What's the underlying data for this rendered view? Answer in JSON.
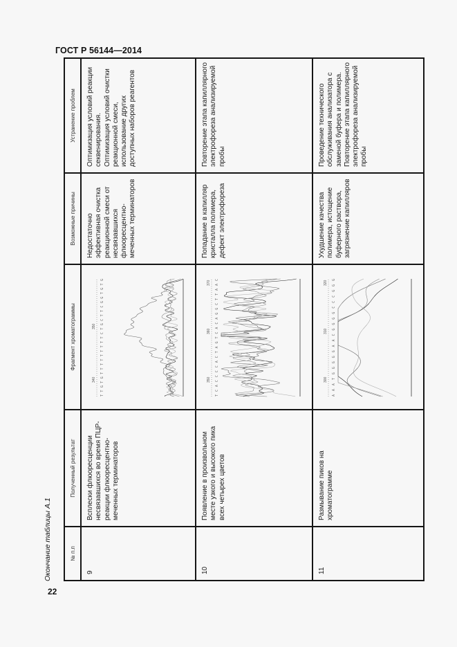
{
  "header": {
    "title": "ГОСТ Р 56144—2014"
  },
  "page_number": "22",
  "caption": "Окончание таблицы А.1",
  "table": {
    "columns": [
      "№ п.п",
      "Полученный результат",
      "Фрагмент хроматограммы",
      "Возможные причины",
      "Устранение проблем"
    ],
    "rows": [
      {
        "num": "9",
        "result": [
          "Всплески флюоресценции",
          "несвязавшихся во время ПЦР-",
          "реакции флюоресцентно-",
          "меченных терминаторов"
        ],
        "fragment": {
          "ticks": [
            "340",
            "350"
          ],
          "sequence": "TTGTGTTTTTTTTTCTGCTTCGGTGTG"
        },
        "causes": [
          "Недостаточно",
          "эффективная очистка",
          "реакционной смеси от",
          "несвязавшихся",
          "флюоресцентно-",
          "меченных терминаторов"
        ],
        "fix": [
          "Оптимизация условий реакции",
          "секвенирования.",
          "Оптимизация условий очистки",
          "реакционной смеси,",
          "использование других",
          "доступных наборов реагентов"
        ]
      },
      {
        "num": "10",
        "result": [
          "Появление в произвольном",
          "месте узкого и высокого пика",
          "всех четырех цветов"
        ],
        "fragment": {
          "ticks": [
            "350",
            "360",
            "370"
          ],
          "sequence": "TCACCCCACTAGTCACAGGCTTAAC"
        },
        "causes": [
          "Попадание в капилляр",
          "кристалла полимера,",
          "дефект электрофореза"
        ],
        "fix": [
          "Повторение этапа капиллярного",
          "электрофореза анализируемой",
          "пробы"
        ]
      },
      {
        "num": "11",
        "result": [
          "Размывание пиков на",
          "хроматограмме"
        ],
        "fragment": {
          "ticks": [
            "300",
            "310",
            "320"
          ],
          "sequence": "AAATGGGGGAACGGGGCCCGGG"
        },
        "causes": [
          "Ухудшение качества",
          "полимера, истощение",
          "буферного раствора,",
          "загрязнение капилляров"
        ],
        "fix": [
          "Проведение технического",
          "обслуживания анализатора с",
          "заменой буфера и полимера.",
          "Повторение этапа капиллярного",
          "электрофореза анализируемой",
          "пробы"
        ]
      }
    ]
  }
}
